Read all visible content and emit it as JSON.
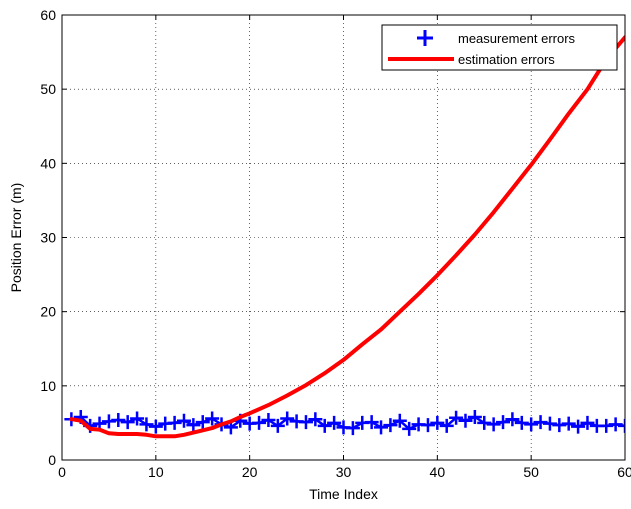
{
  "chart_data": {
    "type": "line",
    "title": "",
    "xlabel": "Time Index",
    "ylabel": "Position Error (m)",
    "xlim": [
      0,
      60
    ],
    "ylim": [
      0,
      60
    ],
    "xticks": [
      0,
      10,
      20,
      30,
      40,
      50,
      60
    ],
    "yticks": [
      0,
      10,
      20,
      30,
      40,
      50,
      60
    ],
    "xtick_labels": [
      "0",
      "10",
      "20",
      "30",
      "40",
      "50",
      "60"
    ],
    "ytick_labels": [
      "0",
      "10",
      "20",
      "30",
      "40",
      "50",
      "60"
    ],
    "grid": true,
    "legend_position": "top-right",
    "series": [
      {
        "name": "measurement errors",
        "color": "#0000ff",
        "style": "line-with-plus-markers",
        "x": [
          1,
          2,
          3,
          4,
          5,
          6,
          7,
          8,
          9,
          10,
          11,
          12,
          13,
          14,
          15,
          16,
          17,
          18,
          19,
          20,
          21,
          22,
          23,
          24,
          25,
          26,
          27,
          28,
          29,
          30,
          31,
          32,
          33,
          34,
          35,
          36,
          37,
          38,
          39,
          40,
          41,
          42,
          43,
          44,
          45,
          46,
          47,
          48,
          49,
          50,
          51,
          52,
          53,
          54,
          55,
          56,
          57,
          58,
          59,
          60
        ],
        "y": [
          5.5,
          5.8,
          4.6,
          4.9,
          5.2,
          5.4,
          5.1,
          5.6,
          4.8,
          4.5,
          4.9,
          5.0,
          5.3,
          4.7,
          5.1,
          5.6,
          4.8,
          4.4,
          5.3,
          4.9,
          5.0,
          5.4,
          4.6,
          5.6,
          5.2,
          5.1,
          5.5,
          4.6,
          5.0,
          4.4,
          4.3,
          5.0,
          5.1,
          4.4,
          4.7,
          5.3,
          4.2,
          4.8,
          4.7,
          5.0,
          4.6,
          5.7,
          5.3,
          5.8,
          5.0,
          4.8,
          5.1,
          5.5,
          5.0,
          4.8,
          5.1,
          4.9,
          4.7,
          4.9,
          4.5,
          5.0,
          4.6,
          4.6,
          4.8,
          4.6
        ]
      },
      {
        "name": "estimation errors",
        "color": "#ff0000",
        "style": "thick-line",
        "x": [
          1,
          2,
          3,
          4,
          5,
          6,
          7,
          8,
          9,
          10,
          11,
          12,
          13,
          14,
          15,
          16,
          17,
          18,
          19,
          20,
          22,
          24,
          26,
          28,
          30,
          32,
          34,
          36,
          38,
          40,
          42,
          44,
          46,
          48,
          50,
          52,
          54,
          56,
          58,
          60
        ],
        "y": [
          5.5,
          5.3,
          4.2,
          4.1,
          3.6,
          3.5,
          3.5,
          3.5,
          3.4,
          3.2,
          3.2,
          3.2,
          3.4,
          3.7,
          4.0,
          4.3,
          4.8,
          5.2,
          5.8,
          6.3,
          7.4,
          8.7,
          10.1,
          11.7,
          13.5,
          15.6,
          17.6,
          20.0,
          22.4,
          24.9,
          27.6,
          30.4,
          33.4,
          36.6,
          39.8,
          43.2,
          46.7,
          50.0,
          54.0,
          57.0
        ]
      }
    ]
  }
}
